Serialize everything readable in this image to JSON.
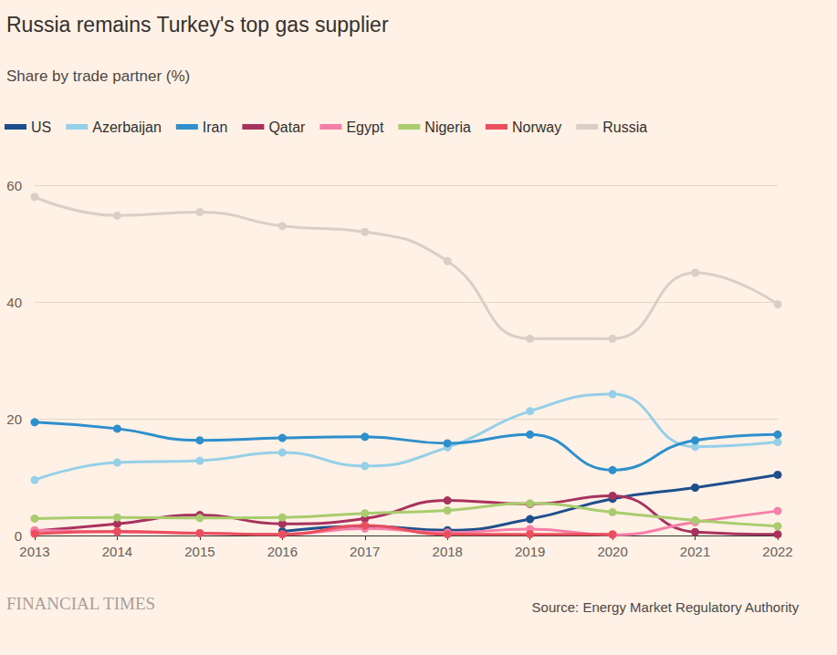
{
  "chart_data": {
    "type": "line",
    "title": "Russia remains Turkey's top gas supplier",
    "subtitle": "Share by trade partner (%)",
    "source": "Source: Energy Market Regulatory Authority",
    "credit": "FINANCIAL TIMES",
    "categories": [
      "2013",
      "2014",
      "2015",
      "2016",
      "2017",
      "2018",
      "2019",
      "2020",
      "2021",
      "2022"
    ],
    "series": [
      {
        "name": "US",
        "color": "#1f4e8c",
        "values": [
          null,
          null,
          null,
          0.7,
          1.6,
          0.9,
          2.8,
          6.3,
          8.2,
          10.4
        ]
      },
      {
        "name": "Azerbaijan",
        "color": "#96d0e8",
        "values": [
          9.5,
          12.5,
          12.8,
          14.2,
          11.9,
          15.1,
          21.3,
          24.2,
          15.2,
          16.0
        ]
      },
      {
        "name": "Iran",
        "color": "#2d8fcb",
        "values": [
          19.4,
          18.3,
          16.3,
          16.7,
          16.9,
          15.8,
          17.3,
          11.2,
          16.3,
          17.3
        ]
      },
      {
        "name": "Qatar",
        "color": "#a8325e",
        "values": [
          0.8,
          2.0,
          3.5,
          2.0,
          2.9,
          6.0,
          5.4,
          6.8,
          0.6,
          0.2
        ]
      },
      {
        "name": "Egypt",
        "color": "#f57fa8",
        "values": [
          0.9,
          0.6,
          0.4,
          0.2,
          1.2,
          0.5,
          1.1,
          0.1,
          2.3,
          4.2
        ]
      },
      {
        "name": "Nigeria",
        "color": "#a8cc6e",
        "values": [
          2.9,
          3.1,
          3.0,
          3.1,
          3.8,
          4.3,
          5.5,
          4.0,
          2.6,
          1.6
        ]
      },
      {
        "name": "Norway",
        "color": "#eb4e5d",
        "values": [
          0.3,
          0.7,
          0.4,
          0.2,
          1.7,
          0.2,
          0.2,
          0.2,
          null,
          null
        ]
      },
      {
        "name": "Russia",
        "color": "#d9cfc6",
        "values": [
          58.0,
          54.8,
          55.4,
          53.0,
          52.0,
          47.0,
          33.7,
          33.7,
          45.0,
          39.6
        ]
      }
    ],
    "ylim": [
      0,
      60
    ],
    "yticks": [
      0,
      20,
      40,
      60
    ],
    "grid": true,
    "legend": "top-left",
    "marker": "circle"
  }
}
